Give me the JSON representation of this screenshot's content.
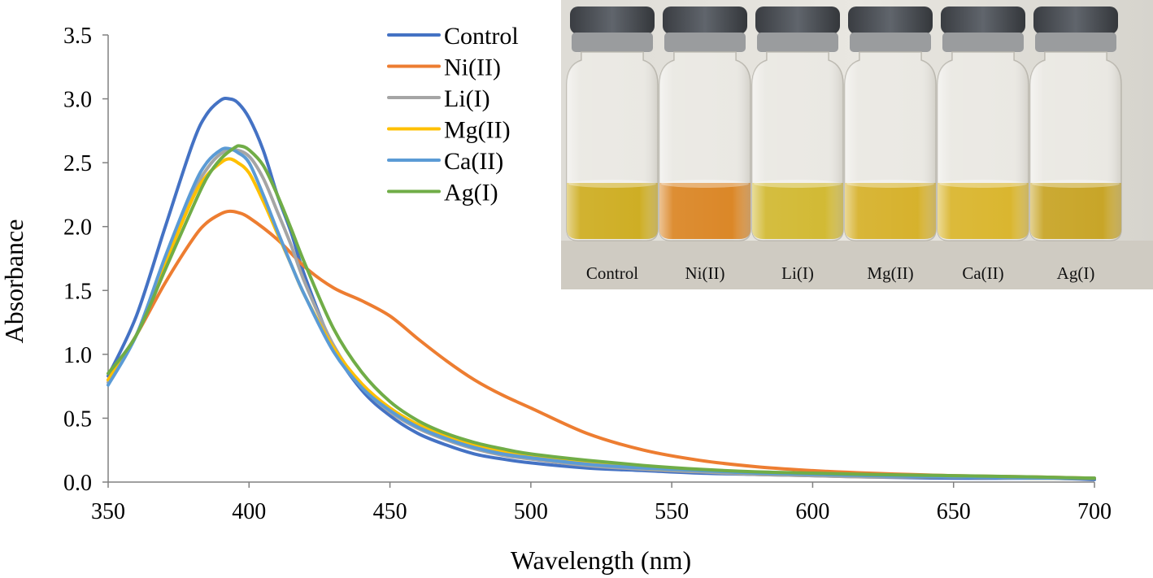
{
  "chart_data": {
    "type": "line",
    "title": "",
    "xlabel": "Wavelength (nm)",
    "ylabel": "Absorbance",
    "xlim": [
      350,
      700
    ],
    "ylim": [
      0,
      3.5
    ],
    "xticks": [
      350,
      400,
      450,
      500,
      550,
      600,
      650,
      700
    ],
    "yticks": [
      0,
      0.5,
      1,
      1.5,
      2,
      2.5,
      3,
      3.5
    ],
    "xtick_labels": [
      "350",
      "400",
      "450",
      "500",
      "550",
      "600",
      "650",
      "700"
    ],
    "ytick_labels": [
      "0.0",
      "0.5",
      "1.0",
      "1.5",
      "2.0",
      "2.5",
      "3.0",
      "3.5"
    ],
    "grid": false,
    "legend_position": "top-center",
    "series": [
      {
        "name": "Control",
        "color": "#4472C4",
        "x": [
          350,
          360,
          370,
          380,
          385,
          390,
          393,
          396,
          400,
          405,
          410,
          415,
          420,
          430,
          440,
          450,
          460,
          470,
          480,
          490,
          500,
          520,
          540,
          560,
          580,
          600,
          620,
          650,
          680,
          700
        ],
        "y": [
          0.83,
          1.3,
          1.98,
          2.65,
          2.88,
          2.99,
          3.0,
          2.97,
          2.85,
          2.6,
          2.25,
          1.95,
          1.6,
          1.05,
          0.72,
          0.52,
          0.38,
          0.29,
          0.22,
          0.18,
          0.15,
          0.11,
          0.09,
          0.07,
          0.06,
          0.05,
          0.04,
          0.03,
          0.03,
          0.02
        ]
      },
      {
        "name": "Ni(II)",
        "color": "#ED7D31",
        "x": [
          350,
          360,
          370,
          380,
          385,
          390,
          393,
          396,
          400,
          410,
          420,
          430,
          440,
          450,
          460,
          470,
          480,
          490,
          500,
          520,
          540,
          560,
          580,
          600,
          620,
          650,
          680,
          700
        ],
        "y": [
          0.8,
          1.15,
          1.55,
          1.9,
          2.03,
          2.1,
          2.12,
          2.11,
          2.07,
          1.9,
          1.68,
          1.52,
          1.42,
          1.3,
          1.12,
          0.95,
          0.8,
          0.68,
          0.58,
          0.38,
          0.25,
          0.17,
          0.12,
          0.09,
          0.07,
          0.05,
          0.04,
          0.03
        ]
      },
      {
        "name": "Li(I)",
        "color": "#A5A5A5",
        "x": [
          350,
          360,
          370,
          380,
          385,
          390,
          395,
          400,
          405,
          410,
          415,
          420,
          430,
          440,
          450,
          460,
          470,
          480,
          490,
          500,
          520,
          540,
          560,
          580,
          600,
          620,
          650,
          680,
          700
        ],
        "y": [
          0.78,
          1.15,
          1.7,
          2.25,
          2.45,
          2.57,
          2.6,
          2.55,
          2.38,
          2.12,
          1.85,
          1.55,
          1.07,
          0.75,
          0.55,
          0.42,
          0.33,
          0.26,
          0.21,
          0.18,
          0.13,
          0.1,
          0.08,
          0.06,
          0.05,
          0.04,
          0.04,
          0.03,
          0.03
        ]
      },
      {
        "name": "Mg(II)",
        "color": "#FFC000",
        "x": [
          350,
          360,
          370,
          380,
          385,
          390,
          393,
          396,
          400,
          405,
          410,
          415,
          420,
          430,
          440,
          450,
          460,
          470,
          480,
          490,
          500,
          520,
          540,
          560,
          580,
          600,
          620,
          650,
          680,
          700
        ],
        "y": [
          0.8,
          1.15,
          1.7,
          2.22,
          2.4,
          2.5,
          2.53,
          2.5,
          2.42,
          2.2,
          1.95,
          1.7,
          1.45,
          1.05,
          0.77,
          0.58,
          0.45,
          0.36,
          0.29,
          0.24,
          0.2,
          0.15,
          0.11,
          0.09,
          0.07,
          0.06,
          0.05,
          0.04,
          0.03,
          0.03
        ]
      },
      {
        "name": "Ca(II)",
        "color": "#5B9BD5",
        "x": [
          350,
          360,
          370,
          380,
          385,
          390,
          393,
          396,
          400,
          405,
          410,
          415,
          420,
          430,
          440,
          450,
          460,
          470,
          480,
          490,
          500,
          520,
          540,
          560,
          580,
          600,
          620,
          650,
          680,
          700
        ],
        "y": [
          0.76,
          1.15,
          1.75,
          2.3,
          2.5,
          2.6,
          2.61,
          2.58,
          2.5,
          2.25,
          1.97,
          1.7,
          1.45,
          1.02,
          0.74,
          0.56,
          0.43,
          0.34,
          0.27,
          0.22,
          0.19,
          0.14,
          0.11,
          0.09,
          0.07,
          0.06,
          0.05,
          0.04,
          0.03,
          0.03
        ]
      },
      {
        "name": "Ag(I)",
        "color": "#70AD47",
        "x": [
          350,
          360,
          370,
          380,
          385,
          390,
          395,
          397,
          400,
          405,
          410,
          415,
          420,
          430,
          440,
          450,
          460,
          470,
          480,
          490,
          500,
          520,
          540,
          560,
          580,
          600,
          620,
          650,
          680,
          700
        ],
        "y": [
          0.85,
          1.15,
          1.65,
          2.15,
          2.38,
          2.53,
          2.62,
          2.63,
          2.6,
          2.48,
          2.25,
          1.98,
          1.7,
          1.2,
          0.86,
          0.63,
          0.48,
          0.38,
          0.31,
          0.26,
          0.22,
          0.17,
          0.13,
          0.1,
          0.08,
          0.07,
          0.06,
          0.05,
          0.04,
          0.03
        ]
      }
    ]
  },
  "inset_photo": {
    "vials": [
      {
        "label": "Control",
        "liquid_color": "#C9A50C"
      },
      {
        "label": "Ni(II)",
        "liquid_color": "#D77A10"
      },
      {
        "label": "Li(I)",
        "liquid_color": "#CDB21E"
      },
      {
        "label": "Mg(II)",
        "liquid_color": "#D2A915"
      },
      {
        "label": "Ca(II)",
        "liquid_color": "#D6AE18"
      },
      {
        "label": "Ag(I)",
        "liquid_color": "#C29B10"
      }
    ]
  }
}
